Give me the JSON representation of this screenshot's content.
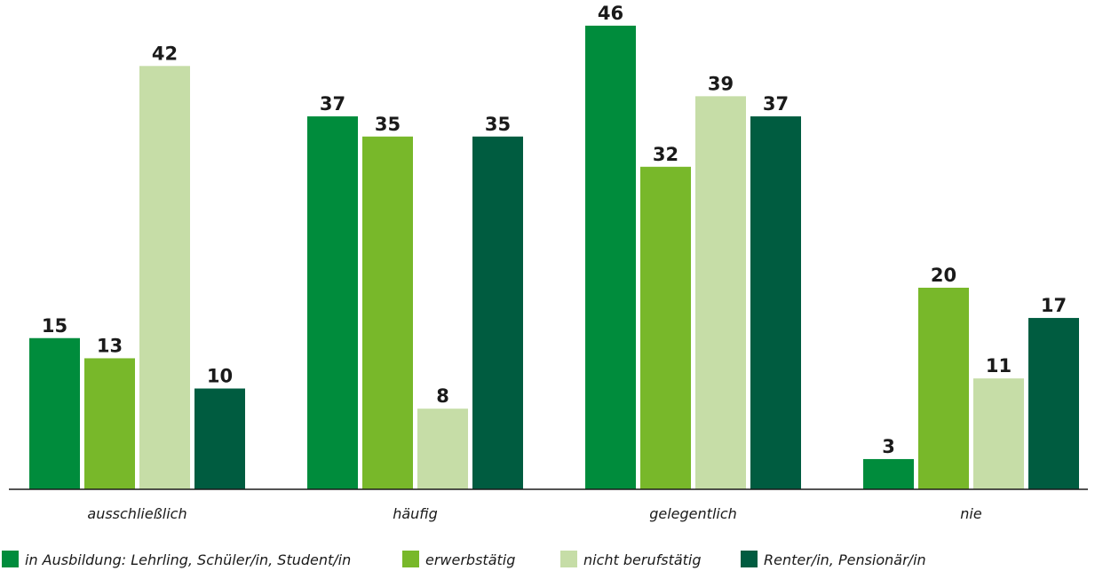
{
  "chart_data": {
    "type": "bar",
    "categories": [
      "ausschließlich",
      "häufig",
      "gelegentlich",
      "nie"
    ],
    "series": [
      {
        "name": "in Ausbildung: Lehrling, Schüler/in, Student/in",
        "color": "#008C3C",
        "values": [
          15,
          37,
          46,
          3
        ]
      },
      {
        "name": "erwerbstätig",
        "color": "#78B82A",
        "values": [
          13,
          35,
          32,
          20
        ]
      },
      {
        "name": "nicht berufstätig",
        "color": "#C6DDA7",
        "values": [
          42,
          8,
          39,
          11
        ]
      },
      {
        "name": "Renter/in, Pensionär/in",
        "color": "#005C40",
        "values": [
          10,
          35,
          37,
          17
        ]
      }
    ],
    "ylim": [
      0,
      50
    ],
    "grid": false,
    "legend_position": "bottom",
    "data_labels": true
  }
}
